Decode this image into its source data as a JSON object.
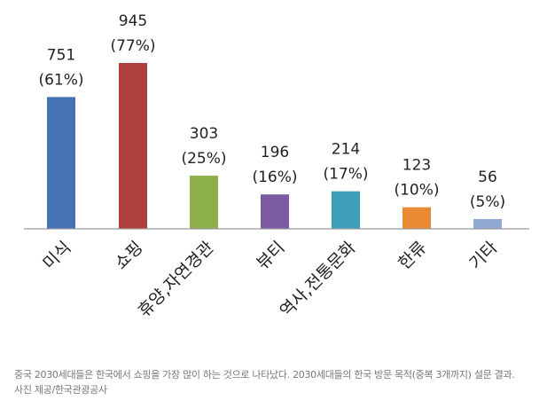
{
  "chart_data": {
    "type": "bar",
    "categories": [
      "미식",
      "쇼핑",
      "휴양,자연경관",
      "뷰티",
      "역사,전통문화",
      "한류",
      "기타"
    ],
    "values": [
      751,
      945,
      303,
      196,
      214,
      123,
      56
    ],
    "percent_labels": [
      "(61%)",
      "(77%)",
      "(25%)",
      "(16%)",
      "(17%)",
      "(10%)",
      "(5%)"
    ],
    "colors": [
      "#4472b4",
      "#b0403e",
      "#8db04d",
      "#7a5aa0",
      "#3ea0b8",
      "#e88a33",
      "#8fa8d4"
    ],
    "ylim": [
      0,
      1000
    ],
    "grid": false,
    "legend": "none"
  },
  "caption": {
    "line1": "중국 2030세대들은 한국에서 쇼핑을 가장 많이 하는 것으로 나타났다. 2030세대들의 한국 방문 목적(중복 3개까지) 설문 결과.",
    "line2": "사진 제공/한국관광공사"
  }
}
